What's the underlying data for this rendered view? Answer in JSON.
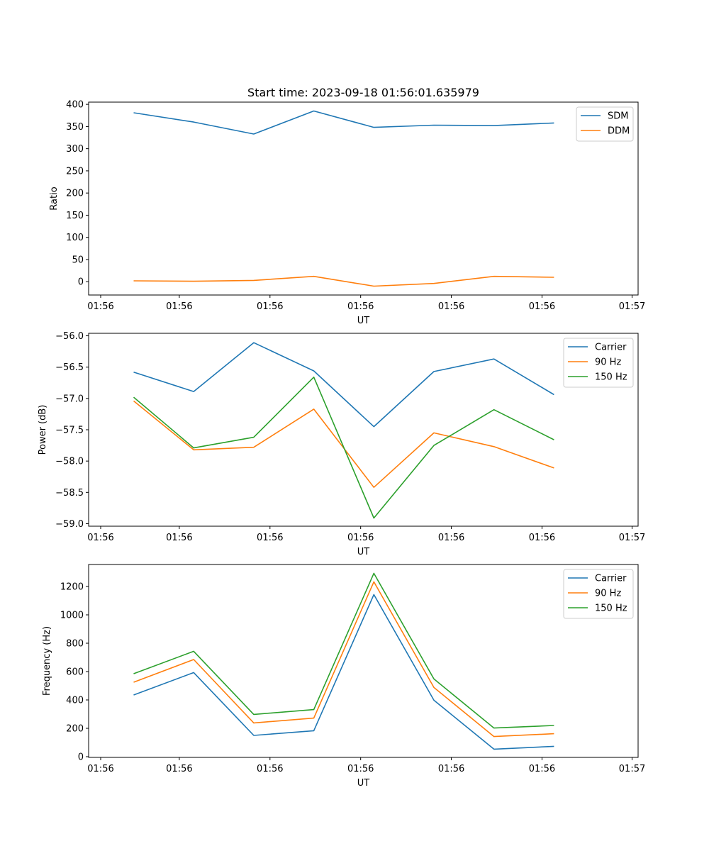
{
  "chart_data": [
    {
      "type": "line",
      "title": "Start time: 2023-09-18 01:56:01.635979",
      "xlabel": "UT",
      "ylabel": "Ratio",
      "x": [
        0,
        1,
        2,
        3,
        4,
        5,
        6,
        7
      ],
      "xlim": [
        -0.75,
        8.4
      ],
      "ylim": [
        -30,
        405
      ],
      "x_tick_labels": [
        "01:56",
        "01:56",
        "01:56",
        "01:56",
        "01:56",
        "01:56",
        "01:56"
      ],
      "y_ticks": [
        0,
        50,
        100,
        150,
        200,
        250,
        300,
        350,
        400
      ],
      "y_tick_labels": [
        "0",
        "50",
        "100",
        "150",
        "200",
        "250",
        "300",
        "350",
        "400"
      ],
      "legend": "top-right",
      "series": [
        {
          "name": "SDM",
          "color": "#1f77b4",
          "values": [
            381,
            360,
            333,
            385,
            348,
            353,
            352,
            358
          ]
        },
        {
          "name": "DDM",
          "color": "#ff7f0e",
          "values": [
            2,
            1,
            3,
            12,
            -10,
            -4,
            12,
            10
          ]
        }
      ]
    },
    {
      "type": "line",
      "title": "",
      "xlabel": "UT",
      "ylabel": "Power (dB)",
      "x": [
        0,
        1,
        2,
        3,
        4,
        5,
        6,
        7
      ],
      "xlim": [
        -0.75,
        8.4
      ],
      "ylim": [
        -59.04,
        -55.96
      ],
      "x_tick_labels": [
        "01:56",
        "01:56",
        "01:56",
        "01:56",
        "01:56",
        "01:56",
        "01:56"
      ],
      "y_ticks": [
        -59.0,
        -58.5,
        -58.0,
        -57.5,
        -57.0,
        -56.5,
        -56.0
      ],
      "y_tick_labels": [
        "−59.0",
        "−58.5",
        "−58.0",
        "−57.5",
        "−57.0",
        "−56.5",
        "−56.0"
      ],
      "legend": "top-right",
      "series": [
        {
          "name": "Carrier",
          "color": "#1f77b4",
          "values": [
            -56.58,
            -56.89,
            -56.11,
            -56.56,
            -57.45,
            -56.57,
            -56.37,
            -56.94
          ]
        },
        {
          "name": "90 Hz",
          "color": "#ff7f0e",
          "values": [
            -57.04,
            -57.82,
            -57.78,
            -57.17,
            -58.42,
            -57.55,
            -57.77,
            -58.11
          ]
        },
        {
          "name": "150 Hz",
          "color": "#2ca02c",
          "values": [
            -56.98,
            -57.79,
            -57.62,
            -56.66,
            -58.91,
            -57.75,
            -57.18,
            -57.66
          ]
        }
      ]
    },
    {
      "type": "line",
      "title": "",
      "xlabel": "UT",
      "ylabel": "Frequency (Hz)",
      "x": [
        0,
        1,
        2,
        3,
        4,
        5,
        6,
        7
      ],
      "xlim": [
        -0.75,
        8.4
      ],
      "ylim": [
        -5,
        1355
      ],
      "x_tick_labels": [
        "01:56",
        "01:56",
        "01:56",
        "01:56",
        "01:56",
        "01:56",
        "01:56"
      ],
      "y_ticks": [
        0,
        200,
        400,
        600,
        800,
        1000,
        1200
      ],
      "y_tick_labels": [
        "0",
        "200",
        "400",
        "600",
        "800",
        "1000",
        "1200"
      ],
      "legend": "top-right",
      "series": [
        {
          "name": "Carrier",
          "color": "#1f77b4",
          "values": [
            435,
            593,
            150,
            183,
            1143,
            398,
            53,
            73
          ]
        },
        {
          "name": "90 Hz",
          "color": "#ff7f0e",
          "values": [
            525,
            685,
            238,
            272,
            1233,
            488,
            142,
            162
          ]
        },
        {
          "name": "150 Hz",
          "color": "#2ca02c",
          "values": [
            585,
            743,
            298,
            332,
            1293,
            548,
            202,
            220
          ]
        }
      ]
    }
  ],
  "x_axis_end_label": "01:57"
}
